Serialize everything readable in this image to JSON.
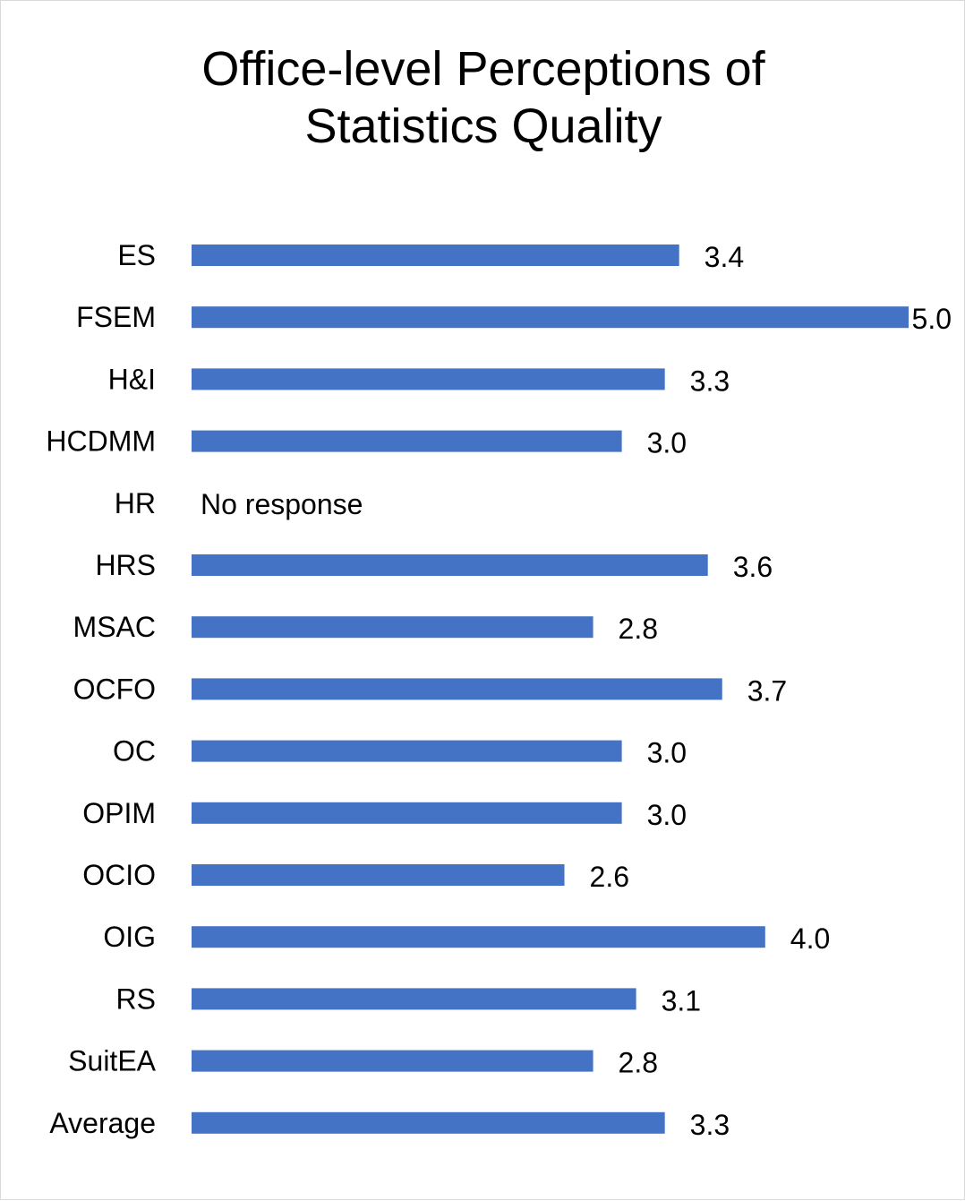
{
  "chart_data": {
    "type": "bar",
    "orientation": "horizontal",
    "title_lines": [
      "Office-level Perceptions of",
      "Statistics Quality"
    ],
    "xlabel": "",
    "ylabel": "",
    "xlim": [
      0,
      5
    ],
    "grid": false,
    "legend": "none",
    "bar_color": "#4472C4",
    "categories": [
      "ES",
      "FSEM",
      "H&I",
      "HCDMM",
      "HR",
      "HRS",
      "MSAC",
      "OCFO",
      "OC",
      "OPIM",
      "OCIO",
      "OIG",
      "RS",
      "SuitEA",
      "Average"
    ],
    "values": [
      3.4,
      5.0,
      3.3,
      3.0,
      null,
      3.6,
      2.8,
      3.7,
      3.0,
      3.0,
      2.6,
      4.0,
      3.1,
      2.8,
      3.3
    ],
    "data_labels": [
      "3.4",
      "5.0",
      "3.3",
      "3.0",
      "No response",
      "3.6",
      "2.8",
      "3.7",
      "3.0",
      "3.0",
      "2.6",
      "4.0",
      "3.1",
      "2.8",
      "3.3"
    ]
  }
}
